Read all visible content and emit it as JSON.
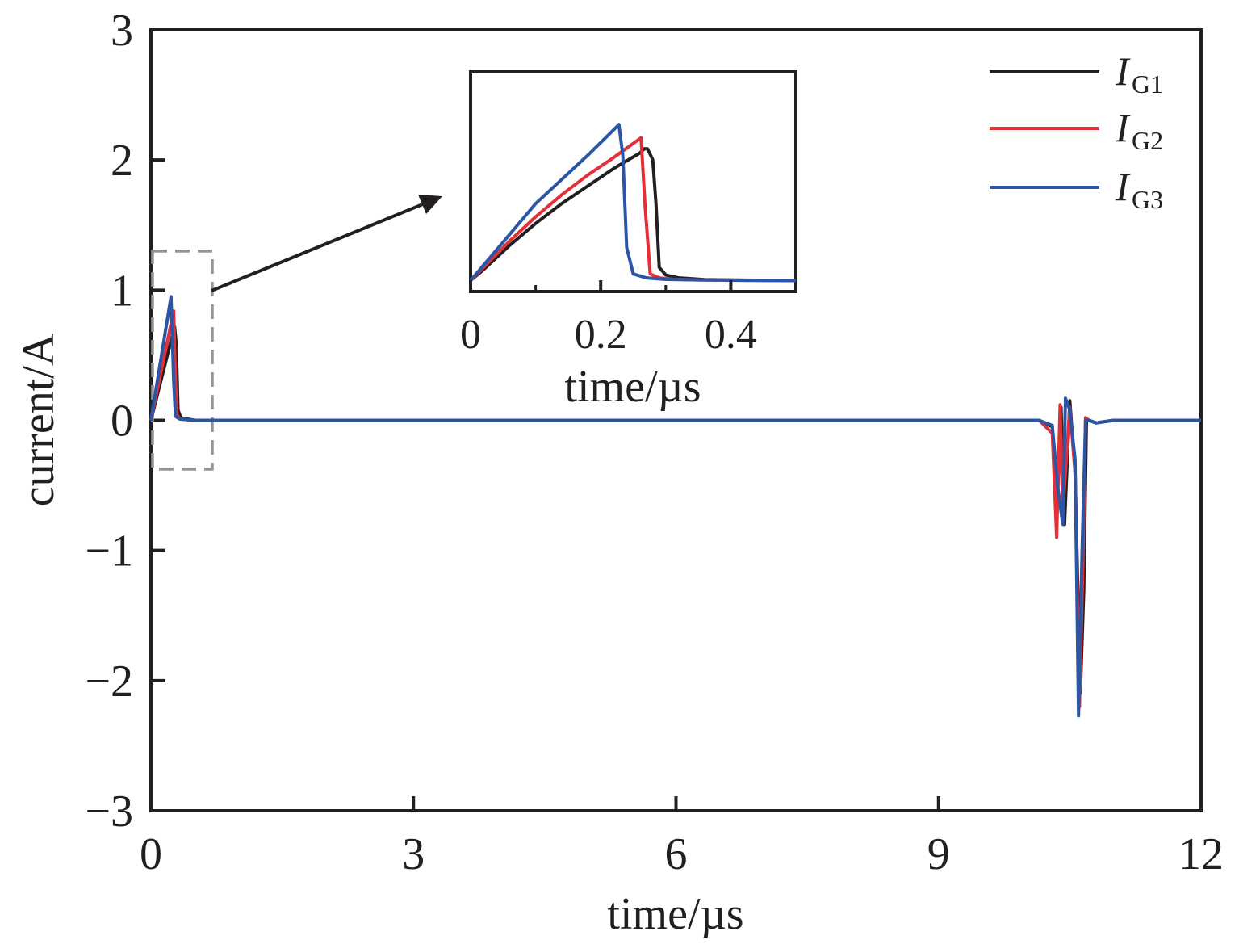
{
  "chart_data": {
    "type": "line",
    "xlabel": "time/µs",
    "ylabel": "current/A",
    "xlim": [
      0,
      12
    ],
    "ylim": [
      -3,
      3
    ],
    "xticks": [
      0,
      3,
      6,
      9,
      12
    ],
    "yticks": [
      3,
      2,
      1,
      0,
      -1,
      -2,
      -3
    ],
    "xtick_labels": [
      "0",
      "3",
      "6",
      "9",
      "12"
    ],
    "ytick_labels": [
      "3",
      "2",
      "1",
      "0",
      "−1",
      "−2",
      "−3"
    ],
    "legend_position": "top-right",
    "series": [
      {
        "name": "I",
        "sub": "G1",
        "color": "#231f20",
        "x": [
          0,
          0.27,
          0.29,
          0.31,
          0.34,
          0.5,
          1,
          10,
          10.15,
          10.3,
          10.35,
          10.4,
          10.44,
          10.5,
          10.56,
          10.62,
          10.66,
          10.69,
          10.72,
          10.8,
          11,
          12
        ],
        "y": [
          0,
          0.72,
          0.58,
          0.08,
          0.02,
          0,
          0,
          0,
          0,
          -0.05,
          -0.75,
          0.1,
          -0.8,
          0.15,
          -0.4,
          -2.1,
          -1.3,
          0.0,
          0.0,
          -0.02,
          0,
          0
        ]
      },
      {
        "name": "I",
        "sub": "G2",
        "color": "#e52f37",
        "x": [
          0,
          0.26,
          0.28,
          0.3,
          0.33,
          0.5,
          1,
          10,
          10.15,
          10.3,
          10.35,
          10.39,
          10.42,
          10.5,
          10.56,
          10.61,
          10.65,
          10.68,
          10.72,
          10.8,
          11,
          12
        ],
        "y": [
          0,
          0.84,
          0.3,
          0.04,
          0.01,
          0,
          0,
          0,
          0,
          -0.1,
          -0.9,
          0.12,
          -0.7,
          0.1,
          -0.4,
          -2.2,
          -1.1,
          0.02,
          0.0,
          -0.02,
          0,
          0
        ]
      },
      {
        "name": "I",
        "sub": "G3",
        "color": "#2b56a5",
        "x": [
          0,
          0.23,
          0.26,
          0.28,
          0.33,
          0.5,
          1,
          10,
          10.15,
          10.3,
          10.36,
          10.42,
          10.45,
          10.5,
          10.56,
          10.6,
          10.64,
          10.68,
          10.72,
          10.8,
          11,
          12
        ],
        "y": [
          0,
          0.95,
          0.3,
          0.03,
          0.01,
          0,
          0,
          0,
          0,
          -0.04,
          -0.5,
          -0.8,
          0.17,
          0.08,
          -0.3,
          -2.27,
          -1.0,
          0.0,
          0.0,
          -0.02,
          0,
          0
        ]
      }
    ],
    "inset": {
      "xlabel": "time/µs",
      "xlim": [
        0,
        0.5
      ],
      "ylim": [
        -0.05,
        0.95
      ],
      "xticks": [
        0,
        0.2,
        0.4
      ],
      "xtick_labels": [
        "0",
        "0.2",
        "0.4"
      ],
      "minor_xticks": [
        0.1,
        0.3
      ],
      "series": [
        {
          "name": "I",
          "sub": "G1",
          "color": "#231f20",
          "x": [
            0,
            0.02,
            0.06,
            0.1,
            0.14,
            0.18,
            0.22,
            0.26,
            0.267,
            0.272,
            0.28,
            0.285,
            0.29,
            0.3,
            0.32,
            0.36,
            0.42,
            0.5
          ],
          "y": [
            0,
            0.05,
            0.16,
            0.26,
            0.35,
            0.43,
            0.51,
            0.58,
            0.6,
            0.6,
            0.55,
            0.35,
            0.06,
            0.025,
            0.012,
            0.004,
            0.002,
            0
          ],
          "color_ref": "chart_data.series.0.color"
        },
        {
          "name": "I",
          "sub": "G2",
          "color": "#e52f37",
          "x": [
            0,
            0.02,
            0.06,
            0.1,
            0.14,
            0.18,
            0.22,
            0.262,
            0.268,
            0.276,
            0.29,
            0.31,
            0.35,
            0.42,
            0.5
          ],
          "y": [
            0,
            0.06,
            0.18,
            0.29,
            0.39,
            0.48,
            0.56,
            0.65,
            0.35,
            0.03,
            0.012,
            0.006,
            0.003,
            0.001,
            0
          ]
        },
        {
          "name": "I",
          "sub": "G3",
          "color": "#2b56a5",
          "x": [
            0,
            0.02,
            0.06,
            0.1,
            0.14,
            0.18,
            0.228,
            0.234,
            0.24,
            0.25,
            0.27,
            0.3,
            0.35,
            0.42,
            0.5
          ],
          "y": [
            0,
            0.07,
            0.21,
            0.35,
            0.46,
            0.57,
            0.71,
            0.57,
            0.15,
            0.03,
            0.012,
            0.005,
            0.003,
            0.001,
            0
          ]
        }
      ]
    }
  }
}
